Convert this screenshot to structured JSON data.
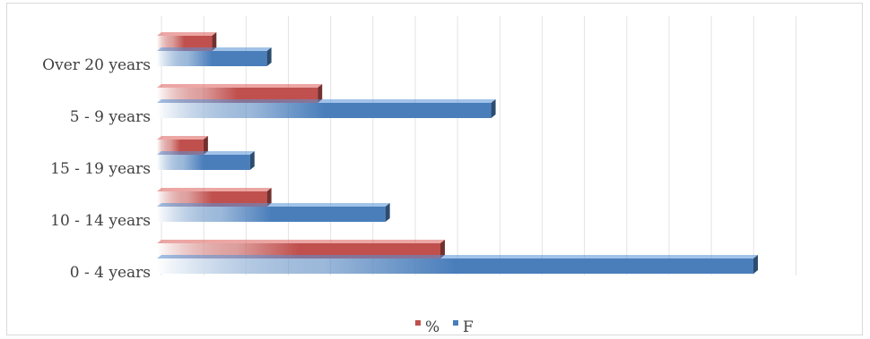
{
  "chart_data": {
    "type": "bar",
    "orientation": "horizontal",
    "style": "3d-gradient",
    "categories": [
      "0 - 4 years",
      "10 - 14 years",
      "15 - 19 years",
      "5 - 9 years",
      "Over 20 years"
    ],
    "series": [
      {
        "name": "F",
        "values": [
          141,
          54,
          22,
          79,
          26
        ],
        "color": "#4a7ebb"
      },
      {
        "name": "%",
        "values": [
          67,
          26,
          11,
          38,
          13
        ],
        "color": "#c0504d"
      }
    ],
    "xlim": [
      0,
      150
    ],
    "grid": true,
    "legend": "bottom",
    "legend_items": [
      {
        "label": "%",
        "color": "#c0504d"
      },
      {
        "label": "F",
        "color": "#4a7ebb"
      }
    ]
  }
}
